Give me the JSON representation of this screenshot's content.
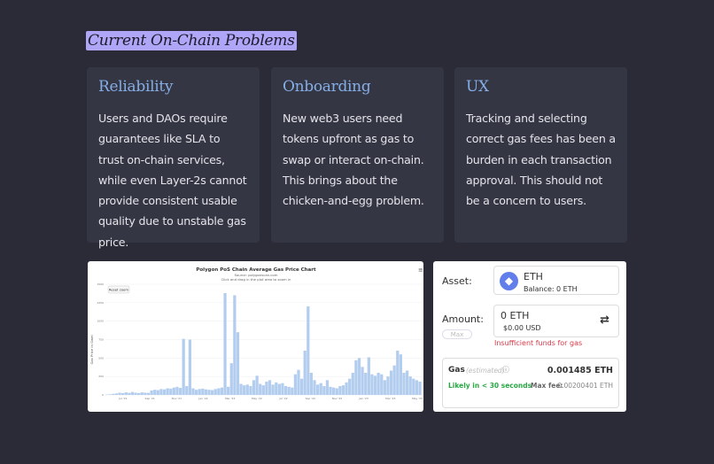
{
  "title": "Current On-Chain Problems",
  "cards": [
    {
      "heading": "Reliability",
      "body": "Users and DAOs require guarantees like SLA to trust on-chain services, while even Layer-2s cannot provide consistent usable quality due to unstable gas price."
    },
    {
      "heading": "Onboarding",
      "body": "New web3 users need tokens upfront as gas to swap or interact on-chain. This brings about the chicken-and-egg problem."
    },
    {
      "heading": "UX",
      "body": "Tracking and selecting correct gas fees has been a burden in each transaction approval. This should not be a concern to users."
    }
  ],
  "chart_data": {
    "type": "bar",
    "title": "Polygon PoS Chain Average Gas Price Chart",
    "subtitle": "Source: polygonscan.com",
    "hint": "Click and drag in the plot area to zoom in",
    "reset_label": "Reset zoom",
    "ylabel": "Gas Price in Gwei",
    "ylim": [
      0,
      1500
    ],
    "yticks": [
      "0",
      "250",
      "500",
      "750",
      "1000",
      "1250",
      "1500"
    ],
    "xticks": [
      "Jul '21",
      "Sep '21",
      "Nov '21",
      "Jan '22",
      "Mar '22",
      "May '22",
      "Jul '22",
      "Sep '22",
      "Nov '22",
      "Jan '23",
      "Mar '23",
      "May '23"
    ],
    "values": [
      5,
      8,
      15,
      20,
      30,
      25,
      35,
      28,
      40,
      30,
      25,
      35,
      30,
      28,
      60,
      70,
      65,
      80,
      75,
      90,
      85,
      100,
      110,
      95,
      760,
      120,
      750,
      90,
      70,
      80,
      85,
      75,
      70,
      65,
      80,
      90,
      100,
      1380,
      110,
      430,
      1350,
      850,
      150,
      130,
      140,
      120,
      200,
      260,
      150,
      130,
      180,
      200,
      140,
      170,
      150,
      160,
      120,
      110,
      100,
      280,
      340,
      220,
      600,
      1200,
      300,
      200,
      140,
      160,
      120,
      200,
      110,
      100,
      90,
      120,
      130,
      170,
      220,
      300,
      470,
      500,
      380,
      300,
      510,
      280,
      260,
      300,
      280,
      200,
      250,
      330,
      400,
      600,
      550,
      300,
      330,
      250,
      220,
      200,
      180
    ]
  },
  "wallet": {
    "asset_label": "Asset:",
    "asset": "ETH",
    "balance_label": "Balance:",
    "balance": "0 ETH",
    "amount_label": "Amount:",
    "amount": "0 ETH",
    "amount_usd": "$0.00 USD",
    "max_label": "Max",
    "error": "Insufficient funds for gas",
    "gas_label": "Gas",
    "gas_estimated": "(estimated)",
    "gas_value": "0.001485 ETH",
    "likely": "Likely in < 30 seconds",
    "max_fee_label": "Max fee:",
    "max_fee": "0.00200401 ETH",
    "colors": {
      "error": "#d73847",
      "likely": "#28a745",
      "eth": "#627eea"
    }
  }
}
